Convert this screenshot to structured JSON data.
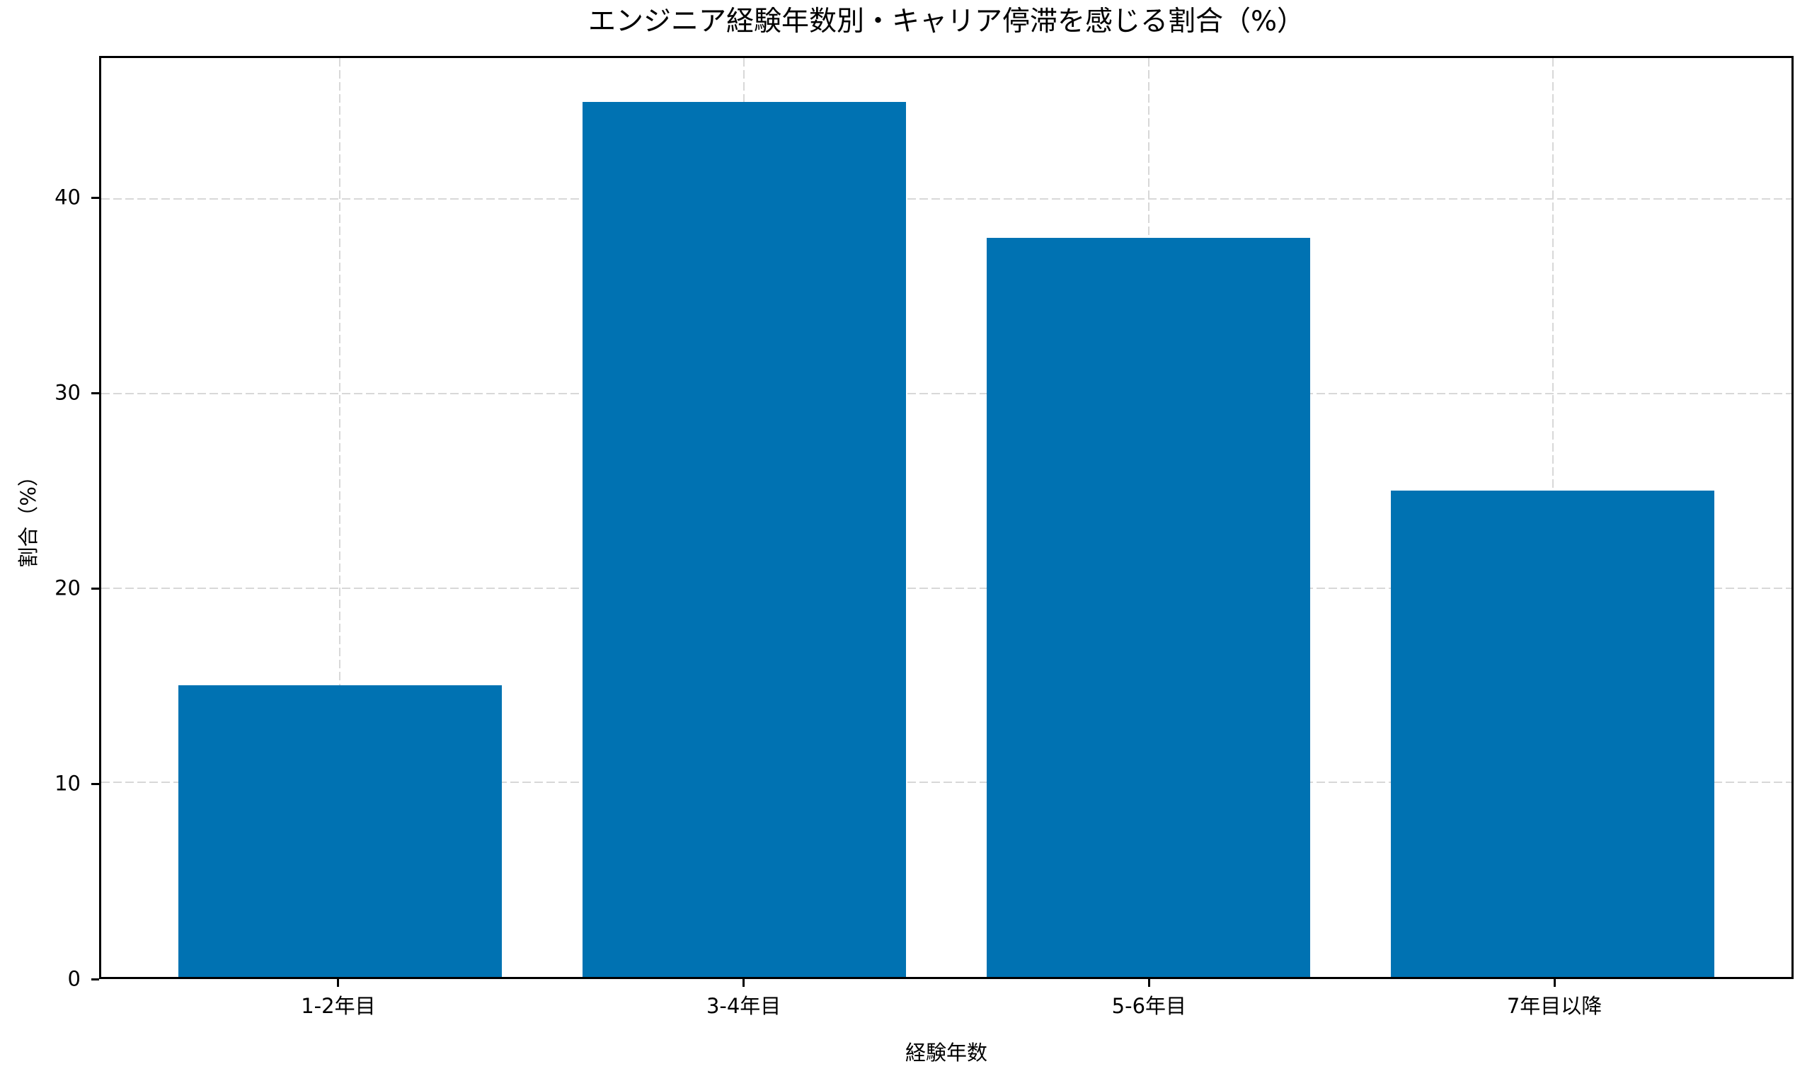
{
  "figure": {
    "background": "#ffffff",
    "text_color": "#000000",
    "grid_color": "#d8d8d8",
    "spine_color": "#000000"
  },
  "chart_data": {
    "type": "bar",
    "title": "エンジニア経験年数別・キャリア停滞を感じる割合（%）",
    "xlabel": "経験年数",
    "ylabel": "割合（%）",
    "categories": [
      "1-2年目",
      "3-4年目",
      "5-6年目",
      "7年目以降"
    ],
    "values": [
      15,
      45,
      38,
      25
    ],
    "yticks": [
      0,
      10,
      20,
      30,
      40
    ],
    "ylim": [
      0,
      47.25
    ],
    "bar_color": "#0072b2",
    "bar_width_fraction": 0.8,
    "grid": "dashed, horizontal and vertical, behind bars",
    "legend": "none"
  }
}
